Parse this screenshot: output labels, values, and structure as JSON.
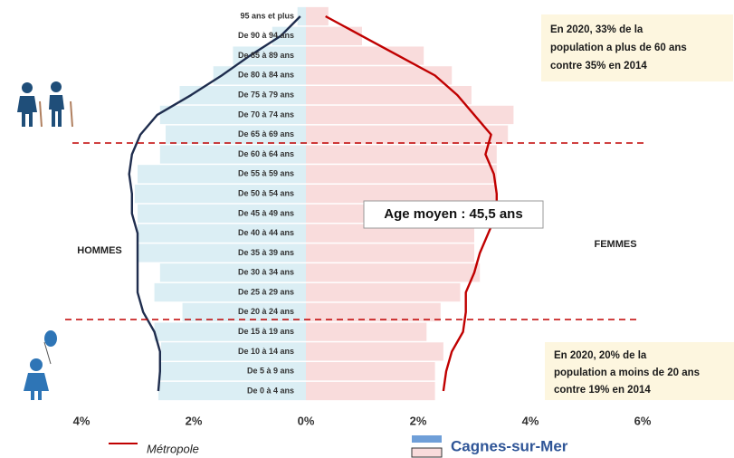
{
  "chart_data": {
    "type": "pyramid",
    "categories": [
      "De 0 à 4 ans",
      "De 5 à 9 ans",
      "De 10 à 14 ans",
      "De 15 à 19 ans",
      "De 20 à 24 ans",
      "De 25 à 29 ans",
      "De 30 à 34 ans",
      "De 35 à 39 ans",
      "De 40 à 44 ans",
      "De 45 à 49 ans",
      "De 50 à 54 ans",
      "De 55 à 59 ans",
      "De 60 à 64 ans",
      "De 65 à 69 ans",
      "De 70 à 74 ans",
      "De 75 à 79 ans",
      "De 80 à 84 ans",
      "De 85 à 89 ans",
      "De 90 à 94 ans",
      "95 ans et plus"
    ],
    "side_labels": [
      "HOMMES",
      "FEMMES"
    ],
    "series": [
      {
        "name": "Cagnes-sur-Mer",
        "mark": "bar",
        "men_color": "#dbeef4",
        "women_color": "#f9dcdc",
        "men": [
          2.63,
          2.6,
          2.58,
          2.7,
          2.2,
          2.7,
          2.6,
          3.0,
          3.0,
          3.0,
          3.05,
          3.0,
          2.6,
          2.5,
          2.6,
          2.25,
          1.65,
          1.3,
          0.6,
          0.15
        ],
        "women": [
          2.3,
          2.3,
          2.45,
          2.15,
          2.4,
          2.75,
          3.1,
          3.0,
          3.0,
          3.25,
          3.4,
          3.4,
          3.4,
          3.6,
          3.7,
          2.95,
          2.6,
          2.1,
          1.0,
          0.4
        ]
      },
      {
        "name": "Métropole",
        "mark": "line",
        "men_color": "#1f2d4e",
        "women_color": "#c00000",
        "men": [
          2.63,
          2.6,
          2.6,
          2.7,
          2.9,
          3.0,
          3.0,
          3.0,
          3.0,
          3.1,
          3.1,
          3.15,
          3.1,
          2.95,
          2.65,
          2.05,
          1.5,
          1.0,
          0.45,
          0.1
        ],
        "women": [
          2.45,
          2.5,
          2.6,
          2.8,
          2.85,
          2.85,
          3.0,
          3.1,
          3.25,
          3.4,
          3.4,
          3.35,
          3.2,
          3.3,
          3.0,
          2.7,
          2.3,
          1.65,
          1.0,
          0.35
        ]
      }
    ],
    "xlim": [
      -4,
      6
    ],
    "xticks": [
      {
        "value": -4,
        "label": "4%"
      },
      {
        "value": -2,
        "label": "2%"
      },
      {
        "value": 0,
        "label": "0%"
      },
      {
        "value": 2,
        "label": "2%"
      },
      {
        "value": 4,
        "label": "4%"
      },
      {
        "value": 6,
        "label": "6%"
      }
    ],
    "annotations": {
      "top": [
        "En 2020,  33% de la",
        "population a plus de 60 ans",
        "contre 35% en 2014"
      ],
      "middle": "Age moyen : 45,5 ans",
      "bottom": [
        "En 2020,  20% de la",
        "population a moins de 20 ans",
        "contre 19% en 2014"
      ]
    }
  }
}
